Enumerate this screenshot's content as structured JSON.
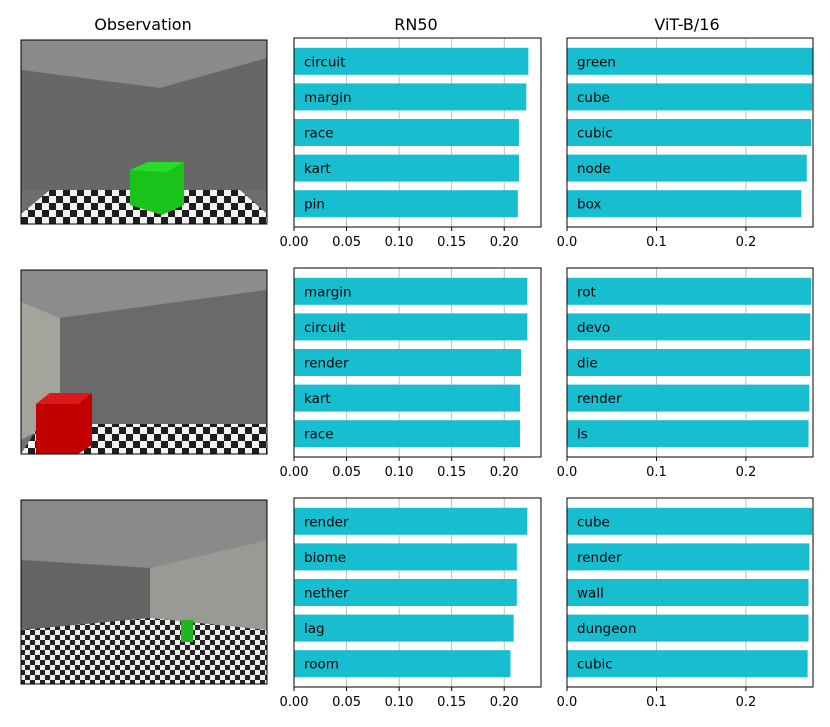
{
  "column_titles": {
    "observation": "Observation",
    "rn50": "RN50",
    "vit": "ViT-B/16"
  },
  "colors": {
    "bar": "#17becf",
    "grid": "#b0b0b0"
  },
  "observations": [
    {
      "name": "observation-green-cube-center",
      "cube_color": "#19c31a"
    },
    {
      "name": "observation-red-cube-left",
      "cube_color": "#c20000"
    },
    {
      "name": "observation-small-green-object-room",
      "cube_color": "#22b322"
    }
  ],
  "chart_data": [
    {
      "type": "bar",
      "orientation": "horizontal",
      "model": "RN50",
      "row": 1,
      "categories": [
        "circuit",
        "margin",
        "race",
        "kart",
        "pin"
      ],
      "values": [
        0.223,
        0.221,
        0.214,
        0.214,
        0.213
      ],
      "xlim": [
        0,
        0.235
      ],
      "xticks": [
        "0.00",
        "0.05",
        "0.10",
        "0.15",
        "0.20"
      ],
      "grid": "vertical"
    },
    {
      "type": "bar",
      "orientation": "horizontal",
      "model": "ViT-B/16",
      "row": 1,
      "categories": [
        "green",
        "cube",
        "cubic",
        "node",
        "box"
      ],
      "values": [
        0.275,
        0.274,
        0.273,
        0.268,
        0.262
      ],
      "xlim": [
        0,
        0.275
      ],
      "xticks": [
        "0.0",
        "0.1",
        "0.2"
      ],
      "grid": "vertical"
    },
    {
      "type": "bar",
      "orientation": "horizontal",
      "model": "RN50",
      "row": 2,
      "categories": [
        "margin",
        "circuit",
        "render",
        "kart",
        "race"
      ],
      "values": [
        0.222,
        0.222,
        0.216,
        0.215,
        0.215
      ],
      "xlim": [
        0,
        0.235
      ],
      "xticks": [
        "0.00",
        "0.05",
        "0.10",
        "0.15",
        "0.20"
      ],
      "grid": "vertical"
    },
    {
      "type": "bar",
      "orientation": "horizontal",
      "model": "ViT-B/16",
      "row": 2,
      "categories": [
        "rot",
        "devo",
        "die",
        "render",
        "ls"
      ],
      "values": [
        0.273,
        0.272,
        0.272,
        0.271,
        0.27
      ],
      "xlim": [
        0,
        0.275
      ],
      "xticks": [
        "0.0",
        "0.1",
        "0.2"
      ],
      "grid": "vertical"
    },
    {
      "type": "bar",
      "orientation": "horizontal",
      "model": "RN50",
      "row": 3,
      "categories": [
        "render",
        "biome",
        "nether",
        "lag",
        "room"
      ],
      "values": [
        0.222,
        0.212,
        0.212,
        0.209,
        0.206
      ],
      "xlim": [
        0,
        0.235
      ],
      "xticks": [
        "0.00",
        "0.05",
        "0.10",
        "0.15",
        "0.20"
      ],
      "grid": "vertical"
    },
    {
      "type": "bar",
      "orientation": "horizontal",
      "model": "ViT-B/16",
      "row": 3,
      "categories": [
        "cube",
        "render",
        "wall",
        "dungeon",
        "cubic"
      ],
      "values": [
        0.274,
        0.271,
        0.27,
        0.27,
        0.269
      ],
      "xlim": [
        0,
        0.275
      ],
      "xticks": [
        "0.0",
        "0.1",
        "0.2"
      ],
      "grid": "vertical"
    }
  ]
}
